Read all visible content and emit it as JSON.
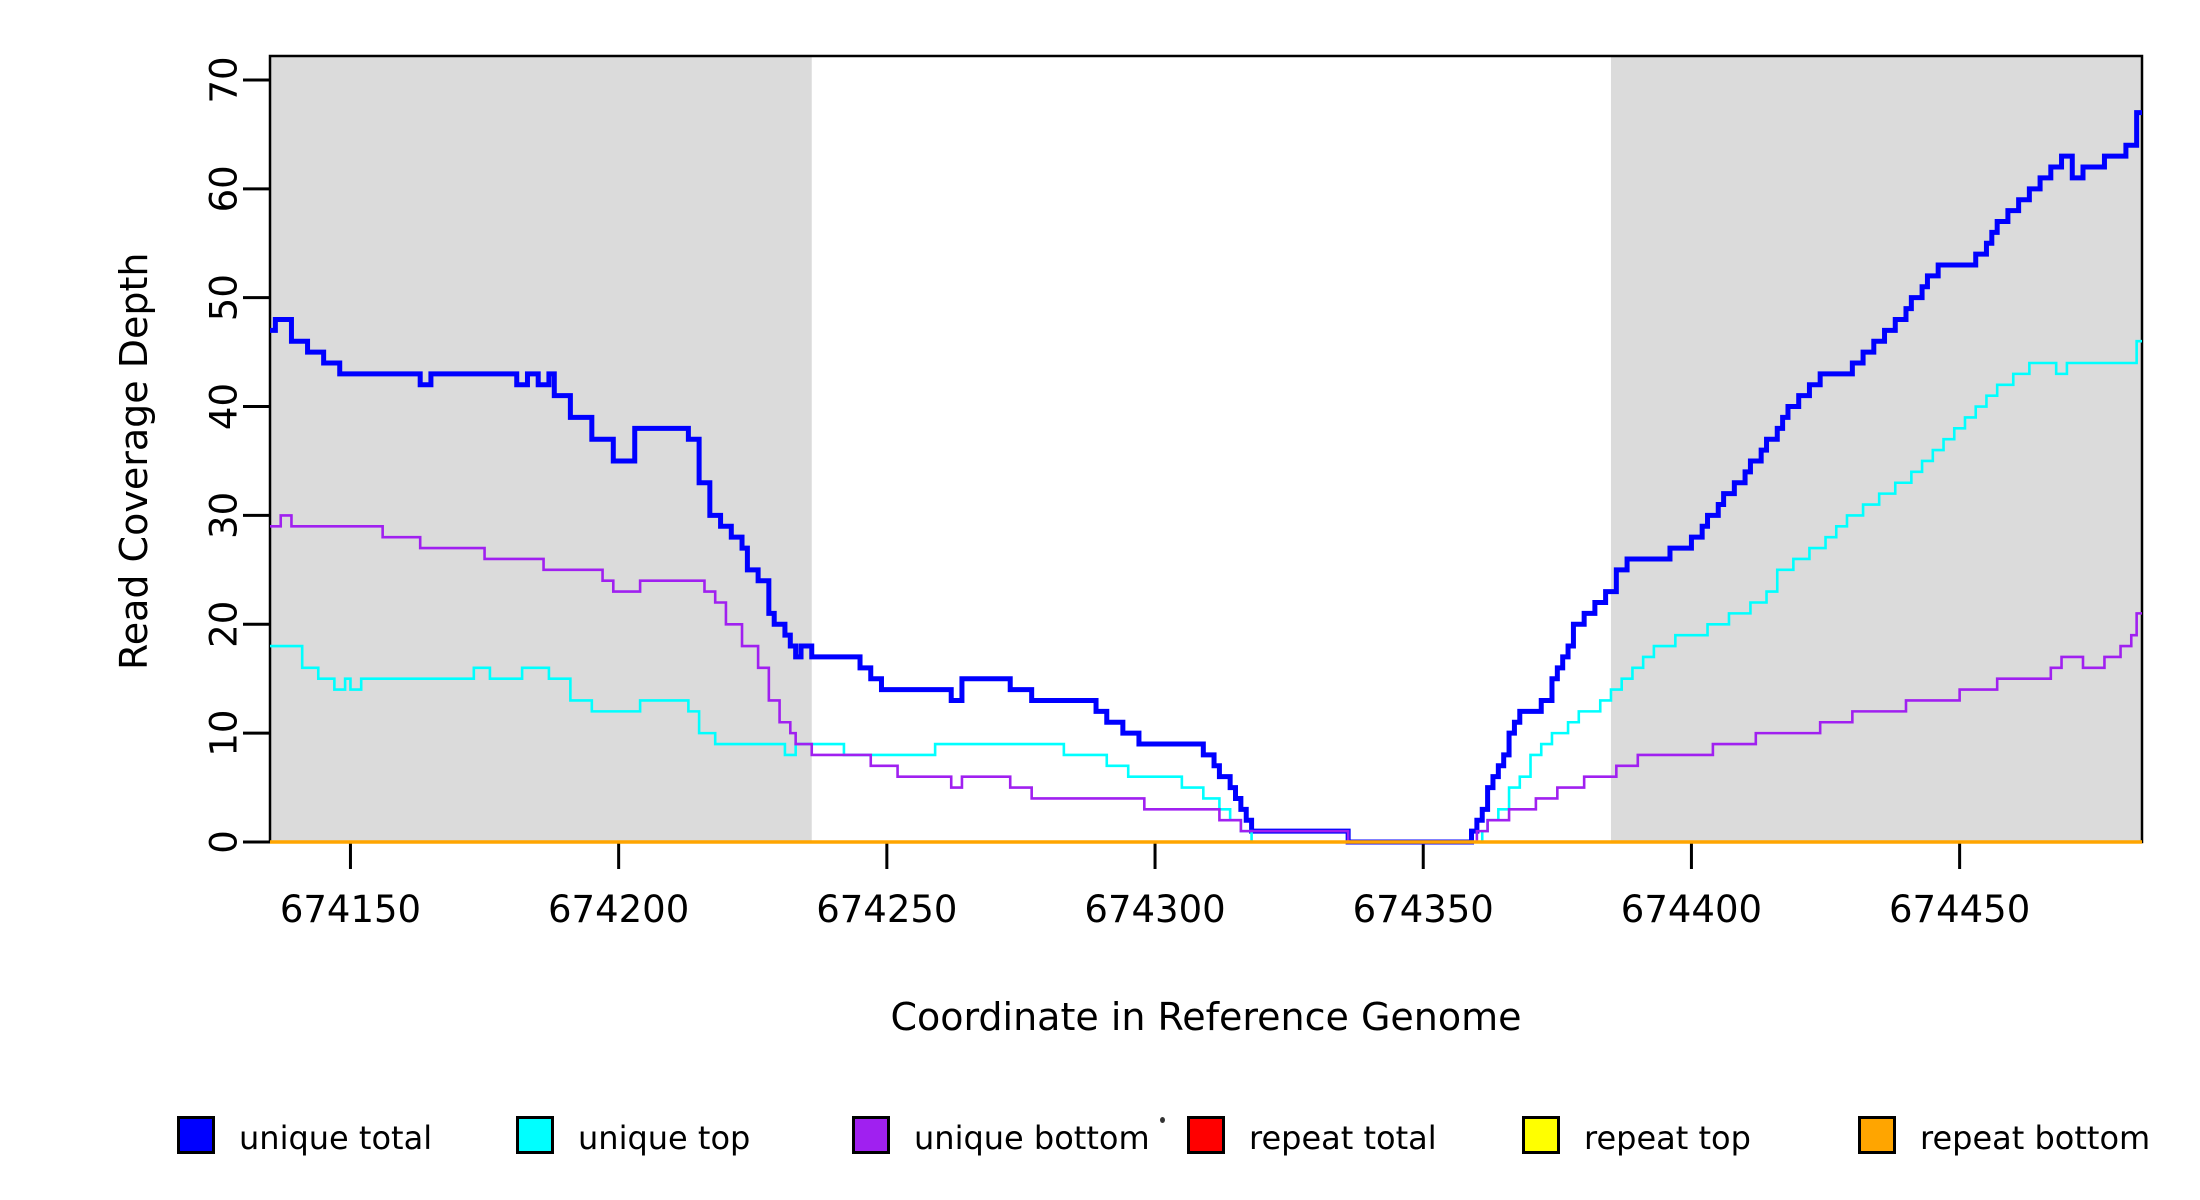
{
  "page": {
    "background": "#FFFFFF"
  },
  "chart_data": {
    "type": "line",
    "subtype": "step-coverage-plot",
    "title": "",
    "xlabel": "Coordinate in Reference Genome",
    "ylabel": "Read Coverage Depth",
    "xlim": [
      674135,
      674484
    ],
    "ylim": [
      0,
      72.2
    ],
    "xticks": [
      674150,
      674200,
      674250,
      674300,
      674350,
      674400,
      674450
    ],
    "yticks": [
      0,
      10,
      20,
      30,
      40,
      50,
      60,
      70
    ],
    "grid": false,
    "legend_position": "bottom",
    "axis_color": "#000000",
    "background_color": "#FFFFFF",
    "shade_color": "#DBDBDB",
    "shaded_regions": [
      {
        "x0": 674135,
        "x1": 674236
      },
      {
        "x0": 674385,
        "x1": 674484
      }
    ],
    "series": [
      {
        "name": "unique total",
        "color": "#0000FF",
        "width": 5,
        "points": [
          [
            674135,
            47
          ],
          [
            674136,
            48
          ],
          [
            674139,
            46
          ],
          [
            674142,
            45
          ],
          [
            674145,
            44
          ],
          [
            674148,
            43
          ],
          [
            674163,
            42
          ],
          [
            674165,
            43
          ],
          [
            674181,
            42
          ],
          [
            674183,
            43
          ],
          [
            674185,
            42
          ],
          [
            674187,
            43
          ],
          [
            674188,
            41
          ],
          [
            674191,
            39
          ],
          [
            674195,
            37
          ],
          [
            674199,
            35
          ],
          [
            674203,
            38
          ],
          [
            674213,
            37
          ],
          [
            674215,
            33
          ],
          [
            674217,
            30
          ],
          [
            674219,
            29
          ],
          [
            674221,
            28
          ],
          [
            674223,
            27
          ],
          [
            674224,
            25
          ],
          [
            674226,
            24
          ],
          [
            674228,
            21
          ],
          [
            674229,
            20
          ],
          [
            674231,
            19
          ],
          [
            674232,
            18
          ],
          [
            674233,
            17
          ],
          [
            674234,
            18
          ],
          [
            674236,
            17
          ],
          [
            674245,
            16
          ],
          [
            674247,
            15
          ],
          [
            674249,
            14
          ],
          [
            674262,
            13
          ],
          [
            674264,
            15
          ],
          [
            674273,
            14
          ],
          [
            674277,
            13
          ],
          [
            674289,
            12
          ],
          [
            674291,
            11
          ],
          [
            674294,
            10
          ],
          [
            674297,
            9
          ],
          [
            674309,
            8
          ],
          [
            674311,
            7
          ],
          [
            674312,
            6
          ],
          [
            674314,
            5
          ],
          [
            674315,
            4
          ],
          [
            674316,
            3
          ],
          [
            674317,
            2
          ],
          [
            674318,
            1
          ],
          [
            674336,
            0
          ],
          [
            674359,
            1
          ],
          [
            674360,
            2
          ],
          [
            674361,
            3
          ],
          [
            674362,
            5
          ],
          [
            674363,
            6
          ],
          [
            674364,
            7
          ],
          [
            674365,
            8
          ],
          [
            674366,
            10
          ],
          [
            674367,
            11
          ],
          [
            674368,
            12
          ],
          [
            674372,
            13
          ],
          [
            674374,
            15
          ],
          [
            674375,
            16
          ],
          [
            674376,
            17
          ],
          [
            674377,
            18
          ],
          [
            674378,
            20
          ],
          [
            674380,
            21
          ],
          [
            674382,
            22
          ],
          [
            674384,
            23
          ],
          [
            674386,
            25
          ],
          [
            674388,
            26
          ],
          [
            674394,
            26
          ],
          [
            674396,
            27
          ],
          [
            674400,
            28
          ],
          [
            674402,
            29
          ],
          [
            674403,
            30
          ],
          [
            674405,
            31
          ],
          [
            674406,
            32
          ],
          [
            674408,
            33
          ],
          [
            674410,
            34
          ],
          [
            674411,
            35
          ],
          [
            674413,
            36
          ],
          [
            674414,
            37
          ],
          [
            674416,
            38
          ],
          [
            674417,
            39
          ],
          [
            674418,
            40
          ],
          [
            674420,
            41
          ],
          [
            674422,
            42
          ],
          [
            674424,
            43
          ],
          [
            674430,
            44
          ],
          [
            674432,
            45
          ],
          [
            674434,
            46
          ],
          [
            674436,
            47
          ],
          [
            674438,
            48
          ],
          [
            674440,
            49
          ],
          [
            674441,
            50
          ],
          [
            674443,
            51
          ],
          [
            674444,
            52
          ],
          [
            674446,
            53
          ],
          [
            674453,
            54
          ],
          [
            674455,
            55
          ],
          [
            674456,
            56
          ],
          [
            674457,
            57
          ],
          [
            674459,
            58
          ],
          [
            674461,
            59
          ],
          [
            674463,
            60
          ],
          [
            674465,
            61
          ],
          [
            674467,
            62
          ],
          [
            674469,
            63
          ],
          [
            674471,
            61
          ],
          [
            674473,
            62
          ],
          [
            674477,
            63
          ],
          [
            674481,
            64
          ],
          [
            674483,
            67
          ]
        ]
      },
      {
        "name": "unique top",
        "color": "#00FFFF",
        "width": 2.6,
        "points": [
          [
            674135,
            18
          ],
          [
            674141,
            16
          ],
          [
            674144,
            15
          ],
          [
            674147,
            14
          ],
          [
            674149,
            15
          ],
          [
            674150,
            14
          ],
          [
            674152,
            15
          ],
          [
            674173,
            16
          ],
          [
            674176,
            15
          ],
          [
            674182,
            16
          ],
          [
            674187,
            15
          ],
          [
            674191,
            13
          ],
          [
            674195,
            12
          ],
          [
            674204,
            13
          ],
          [
            674213,
            12
          ],
          [
            674215,
            10
          ],
          [
            674218,
            9
          ],
          [
            674231,
            8
          ],
          [
            674233,
            9
          ],
          [
            674242,
            8
          ],
          [
            674259,
            9
          ],
          [
            674283,
            8
          ],
          [
            674291,
            7
          ],
          [
            674295,
            6
          ],
          [
            674305,
            5
          ],
          [
            674309,
            4
          ],
          [
            674312,
            3
          ],
          [
            674314,
            2
          ],
          [
            674316,
            1
          ],
          [
            674318,
            0
          ],
          [
            674361,
            1
          ],
          [
            674362,
            2
          ],
          [
            674364,
            3
          ],
          [
            674366,
            5
          ],
          [
            674368,
            6
          ],
          [
            674370,
            8
          ],
          [
            674372,
            9
          ],
          [
            674374,
            10
          ],
          [
            674377,
            11
          ],
          [
            674379,
            12
          ],
          [
            674383,
            13
          ],
          [
            674385,
            14
          ],
          [
            674387,
            15
          ],
          [
            674389,
            16
          ],
          [
            674391,
            17
          ],
          [
            674393,
            18
          ],
          [
            674397,
            19
          ],
          [
            674403,
            20
          ],
          [
            674407,
            21
          ],
          [
            674411,
            22
          ],
          [
            674414,
            23
          ],
          [
            674416,
            25
          ],
          [
            674419,
            26
          ],
          [
            674422,
            27
          ],
          [
            674425,
            28
          ],
          [
            674427,
            29
          ],
          [
            674429,
            30
          ],
          [
            674432,
            31
          ],
          [
            674435,
            32
          ],
          [
            674438,
            33
          ],
          [
            674441,
            34
          ],
          [
            674443,
            35
          ],
          [
            674445,
            36
          ],
          [
            674447,
            37
          ],
          [
            674449,
            38
          ],
          [
            674451,
            39
          ],
          [
            674453,
            40
          ],
          [
            674455,
            41
          ],
          [
            674457,
            42
          ],
          [
            674460,
            43
          ],
          [
            674463,
            44
          ],
          [
            674468,
            43
          ],
          [
            674470,
            44
          ],
          [
            674483,
            46
          ]
        ]
      },
      {
        "name": "unique bottom",
        "color": "#A020F0",
        "width": 2.6,
        "points": [
          [
            674135,
            29
          ],
          [
            674137,
            30
          ],
          [
            674139,
            29
          ],
          [
            674156,
            28
          ],
          [
            674163,
            27
          ],
          [
            674175,
            26
          ],
          [
            674186,
            25
          ],
          [
            674197,
            24
          ],
          [
            674199,
            23
          ],
          [
            674204,
            24
          ],
          [
            674216,
            23
          ],
          [
            674218,
            22
          ],
          [
            674220,
            20
          ],
          [
            674223,
            18
          ],
          [
            674226,
            16
          ],
          [
            674228,
            13
          ],
          [
            674230,
            11
          ],
          [
            674232,
            10
          ],
          [
            674233,
            9
          ],
          [
            674236,
            8
          ],
          [
            674247,
            7
          ],
          [
            674252,
            6
          ],
          [
            674262,
            5
          ],
          [
            674264,
            6
          ],
          [
            674273,
            5
          ],
          [
            674277,
            4
          ],
          [
            674298,
            3
          ],
          [
            674312,
            2
          ],
          [
            674316,
            1
          ],
          [
            674336,
            0
          ],
          [
            674360,
            1
          ],
          [
            674362,
            2
          ],
          [
            674366,
            3
          ],
          [
            674371,
            4
          ],
          [
            674375,
            5
          ],
          [
            674380,
            6
          ],
          [
            674386,
            7
          ],
          [
            674390,
            8
          ],
          [
            674404,
            9
          ],
          [
            674412,
            10
          ],
          [
            674424,
            11
          ],
          [
            674430,
            12
          ],
          [
            674440,
            13
          ],
          [
            674450,
            14
          ],
          [
            674457,
            15
          ],
          [
            674467,
            16
          ],
          [
            674469,
            17
          ],
          [
            674473,
            16
          ],
          [
            674477,
            17
          ],
          [
            674480,
            18
          ],
          [
            674482,
            19
          ],
          [
            674483,
            21
          ]
        ]
      },
      {
        "name": "repeat total",
        "color": "#FF0000",
        "width": 2.6,
        "points": [
          [
            674135,
            0
          ],
          [
            674483,
            0
          ]
        ]
      },
      {
        "name": "repeat top",
        "color": "#FFFF00",
        "width": 2.6,
        "points": [
          [
            674135,
            0
          ],
          [
            674483,
            0
          ]
        ]
      },
      {
        "name": "repeat bottom",
        "color": "#FFA500",
        "width": 3.6,
        "points": [
          [
            674135,
            0
          ],
          [
            674483,
            0
          ]
        ]
      }
    ]
  }
}
